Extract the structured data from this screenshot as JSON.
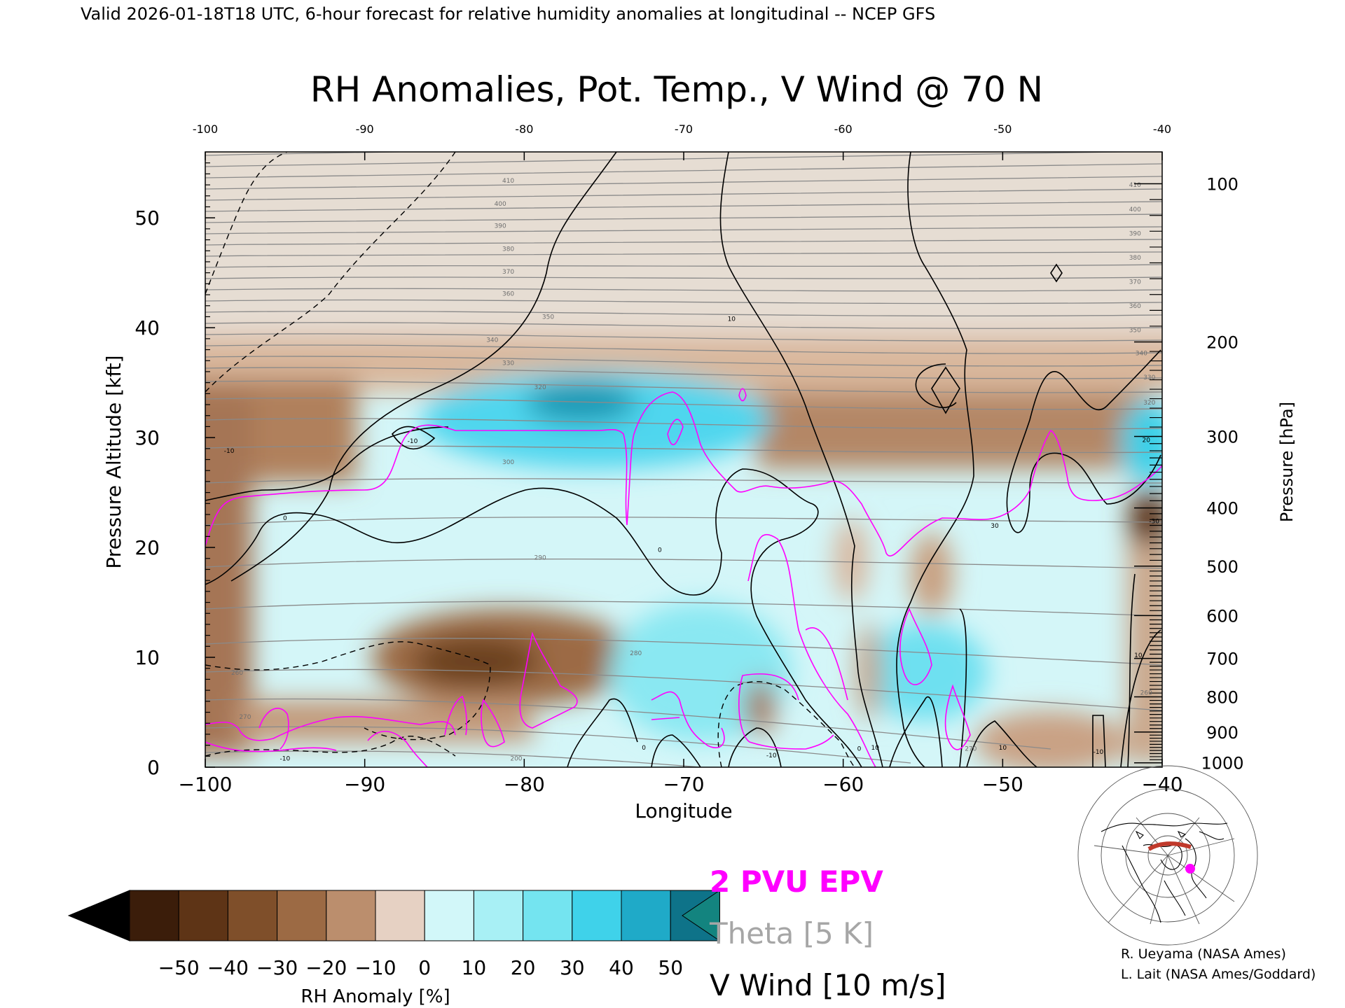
{
  "header": "Valid 2026-01-18T18 UTC, 6-hour forecast for relative humidity anomalies at longitudinal -- NCEP GFS",
  "chart_data": {
    "type": "heatmap",
    "title": "RH Anomalies, Pot. Temp., V Wind @ 70 N",
    "xlabel": "Longitude",
    "ylabel": "Pressure Altitude [kft]",
    "y2label": "Pressure [hPa]",
    "xlim": [
      -100,
      -40
    ],
    "ylim": [
      0,
      56
    ],
    "x_ticks": [
      -100,
      -90,
      -80,
      -70,
      -60,
      -50,
      -40
    ],
    "x_tick_labels": [
      "−100",
      "−90",
      "−80",
      "−70",
      "−60",
      "−50",
      "−40"
    ],
    "top_tick_labels": [
      "-100",
      "-90",
      "-80",
      "-70",
      "-60",
      "-50",
      "-40"
    ],
    "y_ticks": [
      0,
      10,
      20,
      30,
      40,
      50
    ],
    "y_tick_labels": [
      "0",
      "10",
      "20",
      "30",
      "40",
      "50"
    ],
    "pressure_levels": [
      100,
      200,
      300,
      400,
      500,
      600,
      700,
      800,
      900,
      1000
    ],
    "pressure_kft": [
      53.1,
      38.7,
      30.1,
      23.6,
      18.3,
      13.8,
      9.9,
      6.4,
      3.2,
      0.4
    ],
    "colorbar": {
      "label": "RH Anomaly [%]",
      "ticks": [
        -50,
        -40,
        -30,
        -20,
        -10,
        0,
        10,
        20,
        30,
        40,
        50
      ],
      "tick_labels": [
        "−50",
        "−40",
        "−30",
        "−20",
        "−10",
        "0",
        "10",
        "20",
        "30",
        "40",
        "50"
      ],
      "colors": [
        "#3b1d0a",
        "#5e3416",
        "#7f4f2a",
        "#9c6a44",
        "#bb8e6d",
        "#e6d1c3",
        "#d2f7f9",
        "#a8f0f5",
        "#74e4f0",
        "#3fd2ea",
        "#1faac8",
        "#0e7389"
      ],
      "under_color": "#000000",
      "over_color": "#13847f"
    },
    "theta_labels": [
      {
        "value": "200",
        "x": -80.5,
        "y": 0.6
      },
      {
        "value": "260",
        "x": -98,
        "y": 8.4
      },
      {
        "value": "270",
        "x": -97.5,
        "y": 4.4
      },
      {
        "value": "280",
        "x": -73,
        "y": 10.2
      },
      {
        "value": "290",
        "x": -79,
        "y": 18.9
      },
      {
        "value": "300",
        "x": -81,
        "y": 27.6
      },
      {
        "value": "320",
        "x": -79,
        "y": 34.4
      },
      {
        "value": "330",
        "x": -81,
        "y": 36.6
      },
      {
        "value": "340",
        "x": -82,
        "y": 38.7
      },
      {
        "value": "350",
        "x": -78.5,
        "y": 40.8
      },
      {
        "value": "360",
        "x": -81,
        "y": 42.9
      },
      {
        "value": "370",
        "x": -81,
        "y": 44.9
      },
      {
        "value": "380",
        "x": -81,
        "y": 47.0
      },
      {
        "value": "390",
        "x": -81.5,
        "y": 49.1
      },
      {
        "value": "400",
        "x": -81.5,
        "y": 51.1
      },
      {
        "value": "410",
        "x": -81,
        "y": 53.2
      },
      {
        "value": "320",
        "x": -40.8,
        "y": 33.0
      },
      {
        "value": "330",
        "x": -40.8,
        "y": 35.3
      },
      {
        "value": "340",
        "x": -41.3,
        "y": 37.5
      },
      {
        "value": "350",
        "x": -41.7,
        "y": 39.6
      },
      {
        "value": "360",
        "x": -41.7,
        "y": 41.8
      },
      {
        "value": "370",
        "x": -41.7,
        "y": 44.0
      },
      {
        "value": "380",
        "x": -41.7,
        "y": 46.2
      },
      {
        "value": "390",
        "x": -41.7,
        "y": 48.4
      },
      {
        "value": "400",
        "x": -41.7,
        "y": 50.6
      },
      {
        "value": "410",
        "x": -41.7,
        "y": 52.8
      },
      {
        "value": "270",
        "x": -52,
        "y": 1.5
      },
      {
        "value": "260",
        "x": -41,
        "y": 6.6
      }
    ],
    "wind_labels": [
      {
        "value": "-10",
        "x": -98.5,
        "y": 28.6
      },
      {
        "value": "-10",
        "x": -87,
        "y": 29.5
      },
      {
        "value": "0",
        "x": -95,
        "y": 22.5
      },
      {
        "value": "0",
        "x": -71.5,
        "y": 19.6
      },
      {
        "value": "10",
        "x": -67,
        "y": 40.6
      },
      {
        "value": "-10",
        "x": -95,
        "y": 0.6
      },
      {
        "value": "-10",
        "x": -64.5,
        "y": 0.9
      },
      {
        "value": "0",
        "x": -72.5,
        "y": 1.6
      },
      {
        "value": "0",
        "x": -59,
        "y": 1.5
      },
      {
        "value": "10",
        "x": -58,
        "y": 1.6
      },
      {
        "value": "10",
        "x": -50,
        "y": 1.6
      },
      {
        "value": "-10",
        "x": -44,
        "y": 1.2
      },
      {
        "value": "10",
        "x": -41.5,
        "y": 10.0
      },
      {
        "value": "30",
        "x": -50.5,
        "y": 21.8
      },
      {
        "value": "20",
        "x": -41,
        "y": 29.6
      },
      {
        "value": "-30",
        "x": -40.5,
        "y": 22.2
      }
    ]
  },
  "legend": {
    "epv": "2 PVU EPV",
    "theta": "Theta [5 K]",
    "vwind": "V Wind [10 m/s]",
    "colors": {
      "epv": "#ff00ff",
      "theta": "#a6a6a6",
      "vwind": "#000000"
    }
  },
  "credits": [
    "R. Ueyama (NASA Ames)",
    "L. Lait (NASA Ames/Goddard)"
  ]
}
